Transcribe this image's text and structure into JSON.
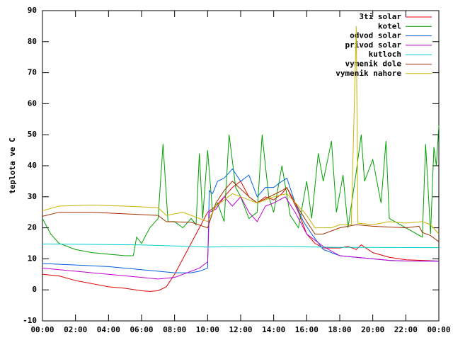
{
  "chart_data": {
    "type": "line",
    "y_label": "teplota ve C",
    "xlim": [
      0,
      24
    ],
    "ylim": [
      -10,
      90
    ],
    "xticks": [
      {
        "value": 0,
        "label": "00:00"
      },
      {
        "value": 2,
        "label": "02:00"
      },
      {
        "value": 4,
        "label": "04:00"
      },
      {
        "value": 6,
        "label": "06:00"
      },
      {
        "value": 8,
        "label": "08:00"
      },
      {
        "value": 10,
        "label": "10:00"
      },
      {
        "value": 12,
        "label": "12:00"
      },
      {
        "value": 14,
        "label": "14:00"
      },
      {
        "value": 16,
        "label": "16:00"
      },
      {
        "value": 18,
        "label": "18:00"
      },
      {
        "value": 20,
        "label": "20:00"
      },
      {
        "value": 22,
        "label": "22:00"
      },
      {
        "value": 24,
        "label": "00:00"
      }
    ],
    "yticks": [
      -10,
      0,
      10,
      20,
      30,
      40,
      50,
      60,
      70,
      80,
      90
    ],
    "legend": "top-right",
    "series": [
      {
        "name": "3ti solar",
        "color": "#e00000",
        "x": [
          0,
          1,
          2,
          3,
          4,
          5,
          6,
          6.5,
          7,
          7.5,
          8,
          8.5,
          9,
          9.5,
          10,
          10.5,
          11,
          11.5,
          12,
          12.5,
          13,
          13.5,
          14,
          14.5,
          14.8,
          15.5,
          16,
          16.5,
          17,
          18,
          18.5,
          19,
          19.3,
          20,
          21,
          22,
          23,
          24
        ],
        "values": [
          5,
          4.5,
          3,
          2,
          1,
          0.5,
          -0.3,
          -0.5,
          -0.3,
          1,
          5,
          10,
          15,
          20,
          25,
          27,
          30,
          33,
          35,
          30,
          28,
          30,
          29,
          31,
          33,
          25,
          18,
          15,
          13.5,
          13.5,
          14,
          13,
          14.5,
          12,
          10.5,
          9.7,
          9.5,
          9.3
        ]
      },
      {
        "name": "kotel",
        "color": "#00a000",
        "x": [
          0,
          0.5,
          1,
          2,
          3,
          4,
          5,
          5.5,
          5.7,
          6,
          6.5,
          7,
          7.3,
          7.6,
          8,
          8.5,
          9,
          9.3,
          9.5,
          9.7,
          10,
          10.3,
          10.6,
          11,
          11.3,
          11.7,
          12,
          12.5,
          13,
          13.3,
          13.7,
          14,
          14.5,
          15,
          15.5,
          16,
          16.3,
          16.7,
          17,
          17.5,
          17.8,
          18.2,
          18.5,
          19,
          19.3,
          19.5,
          20,
          20.5,
          20.8,
          21,
          22,
          23,
          23.2,
          23.5,
          23.7,
          23.85,
          24
        ],
        "values": [
          23,
          18,
          15,
          13,
          12,
          11.5,
          11,
          11,
          17,
          15,
          20,
          23,
          47,
          22,
          22,
          20,
          23,
          21,
          44,
          23,
          45,
          25,
          28,
          22,
          50,
          33,
          30,
          23,
          25,
          50,
          30,
          25,
          40,
          24,
          20,
          35,
          23,
          44,
          35,
          48,
          25,
          37,
          20,
          38,
          50,
          35,
          42,
          28,
          48,
          23,
          20,
          17,
          47,
          18,
          46,
          40,
          53
        ]
      },
      {
        "name": "odvod solar",
        "color": "#0060e0",
        "x": [
          0,
          2,
          4,
          6,
          7,
          8,
          9,
          9.5,
          10,
          10.1,
          10.3,
          10.6,
          11,
          11.5,
          12,
          12.5,
          13,
          13.5,
          14,
          14.5,
          14.8,
          15.3,
          15.8,
          16.3,
          17,
          18,
          19,
          20,
          21,
          22,
          24
        ],
        "values": [
          8.5,
          8,
          7.5,
          6.5,
          6,
          5.5,
          5.5,
          6,
          7,
          32,
          31,
          35,
          36,
          39,
          35,
          37,
          30,
          33,
          33,
          35,
          36,
          28,
          22,
          18,
          13,
          11,
          10.5,
          10,
          9.5,
          9.3,
          9.3
        ]
      },
      {
        "name": "privod solar",
        "color": "#c000d0",
        "x": [
          0,
          2,
          4,
          6,
          7,
          8,
          8.5,
          9.5,
          10,
          10.1,
          10.5,
          11,
          11.5,
          12,
          12.5,
          13,
          13.5,
          14,
          14.7,
          15.3,
          16,
          17,
          18,
          19,
          20,
          21,
          22,
          24
        ],
        "values": [
          7,
          6,
          5,
          4,
          3.5,
          4,
          5,
          7,
          9,
          25,
          26,
          30,
          27,
          30,
          25,
          22,
          27,
          28,
          30,
          25,
          18,
          14,
          11,
          10.5,
          10,
          9.5,
          9.3,
          9.2
        ]
      },
      {
        "name": "kutloch",
        "color": "#00d0d0",
        "x": [
          0,
          6,
          10,
          14,
          18,
          24
        ],
        "values": [
          14.8,
          14.5,
          13.8,
          14,
          13.7,
          13.6
        ]
      },
      {
        "name": "vymenik dole",
        "color": "#a03000",
        "x": [
          0,
          1,
          3,
          5,
          7,
          7.5,
          9,
          10,
          10.5,
          11,
          11.5,
          12.5,
          13,
          14.5,
          14.8,
          15.3,
          16,
          16.5,
          17,
          17.5,
          18,
          19,
          20,
          22,
          22.8,
          23,
          23.5,
          24
        ],
        "values": [
          23.7,
          25,
          25,
          24.5,
          24,
          22,
          21.8,
          20,
          28,
          32,
          35,
          30,
          28,
          32,
          33,
          28,
          22,
          18,
          18,
          19,
          20,
          21,
          20.5,
          20,
          20.5,
          18.5,
          17.5,
          15.5
        ]
      },
      {
        "name": "vymenik nahore",
        "color": "#c8b400",
        "x": [
          0,
          1,
          3,
          5,
          7,
          7.5,
          8.5,
          9.5,
          10,
          10.5,
          11.5,
          12,
          13,
          14,
          14.8,
          15.5,
          16,
          16.5,
          17.5,
          18,
          18.7,
          19,
          19.1,
          20,
          21,
          22,
          23,
          23.5,
          24
        ],
        "values": [
          25.5,
          27,
          27.3,
          27,
          26.5,
          24,
          25,
          23,
          22,
          27,
          31,
          30,
          28,
          30,
          31,
          27,
          24,
          20,
          20,
          21,
          21,
          85,
          21.5,
          21,
          22,
          21.5,
          22,
          21,
          18
        ]
      }
    ]
  }
}
